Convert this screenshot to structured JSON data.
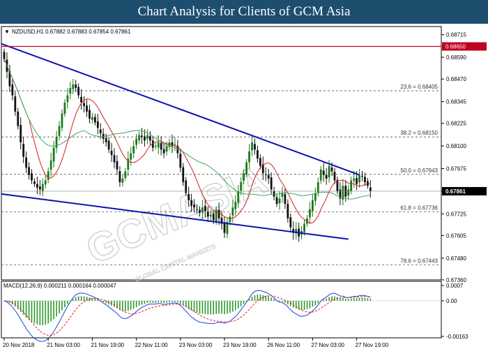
{
  "title": "Chart Analysis for Clients of GCM Asia",
  "watermark": {
    "brand": "GCMASIA",
    "sub": "GLOBAL CAPITAL MARKETS"
  },
  "colors": {
    "header_bg": "#1e4e6e",
    "bull": "#1a7a1a",
    "bear": "#111111",
    "ma_fast": "#d02020",
    "ma_slow": "#3aa85a",
    "channel": "#1010b0",
    "resistance": "#c00020",
    "macd_line": "#2040e0",
    "signal_line": "#e02020",
    "histogram": "#2a9a2a"
  },
  "chart_data": [
    {
      "type": "candlestick",
      "symbol_info": "NZDUSD,H1  0.67882 0.67883 0.67854 0.67861",
      "current_price": "0.67861",
      "resistance_line": {
        "value": 0.6865,
        "label": "0.68650"
      },
      "ylim": [
        0.6736,
        0.6876
      ],
      "y_ticks": [
        "0.68715",
        "0.68590",
        "0.68470",
        "0.68345",
        "0.68225",
        "0.68100",
        "0.67975",
        "0.67850",
        "0.67725",
        "0.67605",
        "0.67480",
        "0.67360"
      ],
      "y_tick_values": [
        0.68715,
        0.6859,
        0.6847,
        0.68345,
        0.68225,
        0.681,
        0.67975,
        0.6785,
        0.67725,
        0.67605,
        0.6748,
        0.6736
      ],
      "fib_levels": [
        {
          "label": "23.6 = 0.68405",
          "value": 0.68405
        },
        {
          "label": "38.2 = 0.68150",
          "value": 0.6815
        },
        {
          "label": "50.0 = 0.67943",
          "value": 0.67943
        },
        {
          "label": "61.8 = 0.67736",
          "value": 0.67736
        },
        {
          "label": "78.6 = 0.67443",
          "value": 0.67443
        }
      ],
      "x_labels": [
        "20 Nov 2018",
        "21 Nov 03:00",
        "21 Nov 19:00",
        "22 Nov 11:00",
        "23 Nov 03:00",
        "23 Nov 19:00",
        "26 Nov 11:00",
        "27 Nov 03:00",
        "27 Nov 19:00"
      ],
      "x_label_bars": [
        0,
        16,
        32,
        48,
        64,
        80,
        96,
        112,
        128
      ],
      "close": [
        0.6858,
        0.6851,
        0.6843,
        0.6838,
        0.6829,
        0.6821,
        0.6812,
        0.6804,
        0.6798,
        0.6794,
        0.6791,
        0.6789,
        0.6787,
        0.6786,
        0.6789,
        0.6791,
        0.6796,
        0.6802,
        0.6809,
        0.6815,
        0.6821,
        0.6828,
        0.6834,
        0.6838,
        0.6842,
        0.6844,
        0.6842,
        0.6838,
        0.6834,
        0.6832,
        0.6829,
        0.6825,
        0.6826,
        0.6823,
        0.682,
        0.6817,
        0.6814,
        0.6812,
        0.6808,
        0.6805,
        0.6801,
        0.6797,
        0.679,
        0.6792,
        0.6796,
        0.6803,
        0.6806,
        0.681,
        0.6814,
        0.6816,
        0.6815,
        0.6813,
        0.6816,
        0.6813,
        0.6809,
        0.681,
        0.6812,
        0.6808,
        0.6806,
        0.681,
        0.6812,
        0.681,
        0.6811,
        0.6806,
        0.6798,
        0.679,
        0.6784,
        0.678,
        0.6777,
        0.6776,
        0.6775,
        0.6773,
        0.6776,
        0.6774,
        0.6771,
        0.6772,
        0.6769,
        0.6775,
        0.677,
        0.6767,
        0.6762,
        0.6768,
        0.6771,
        0.6776,
        0.6779,
        0.6785,
        0.679,
        0.6795,
        0.6801,
        0.6807,
        0.6812,
        0.6808,
        0.6803,
        0.6799,
        0.6795,
        0.6794,
        0.6792,
        0.6786,
        0.6782,
        0.6778,
        0.6781,
        0.6784,
        0.6778,
        0.677,
        0.6765,
        0.6762,
        0.6764,
        0.676,
        0.6763,
        0.6767,
        0.677,
        0.6775,
        0.678,
        0.6784,
        0.679,
        0.6797,
        0.6794,
        0.6792,
        0.6799,
        0.6796,
        0.6791,
        0.6785,
        0.6781,
        0.6788,
        0.6782,
        0.6786,
        0.6791,
        0.6792,
        0.6789,
        0.6794,
        0.6793,
        0.679,
        0.6788,
        0.6785
      ],
      "price_high": 0.6868,
      "price_low": 0.6754
    },
    {
      "type": "macd",
      "label": "MACD(12,26,9) 0.000211 0.000164 0.000047",
      "ylim": [
        -0.00163,
        0.0007
      ],
      "y_ticks": [
        "0.0007",
        "0.00",
        "-0.00163"
      ],
      "y_tick_values": [
        0.0007,
        0.0,
        -0.00163
      ]
    }
  ]
}
